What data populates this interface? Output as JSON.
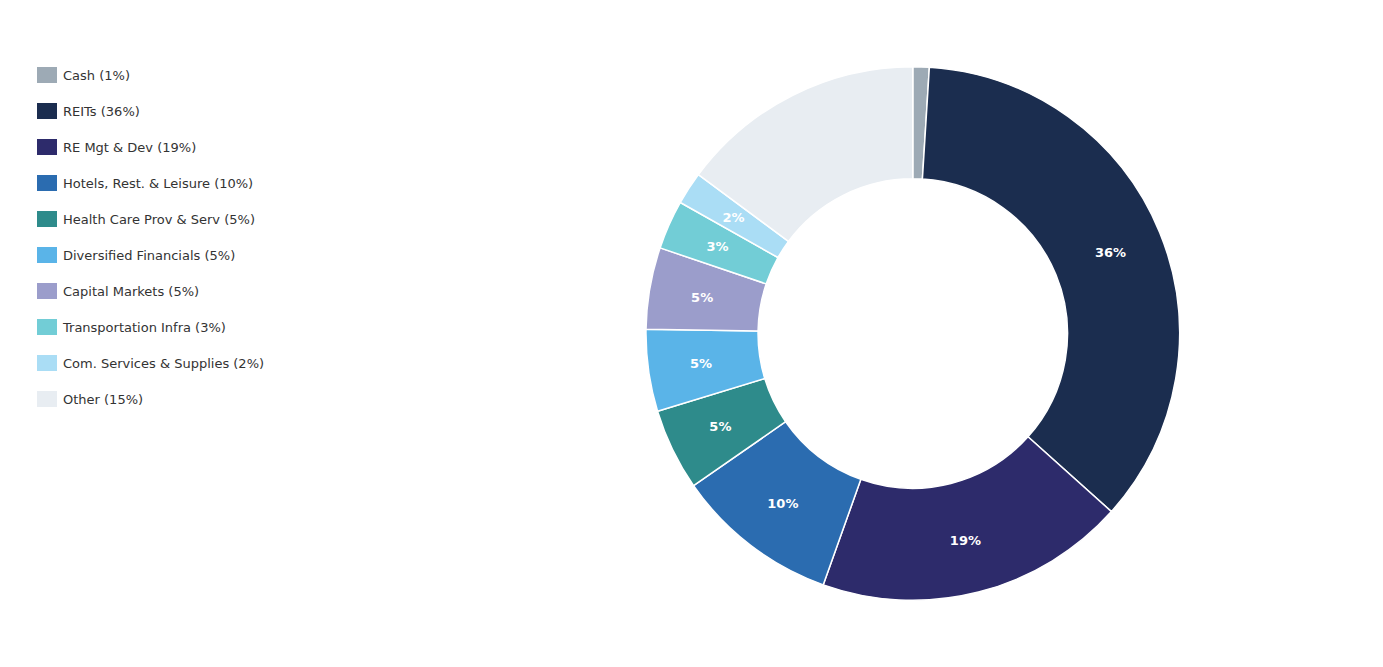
{
  "chart_data": {
    "type": "pie",
    "categories": [
      "Cash (1%)",
      "REITs (36%)",
      "RE Mgt & Dev (19%)",
      "Hotels, Rest. & Leisure (10%)",
      "Health Care Prov & Serv (5%)",
      "Diversified Financials (5%)",
      "Capital Markets (5%)",
      "Transportation Infra (3%)",
      "Com. Services & Supplies (2%)",
      "Other (15%)"
    ],
    "values": [
      1,
      36,
      19,
      10,
      5,
      5,
      5,
      3,
      2,
      15
    ],
    "value_labels": [
      null,
      "36%",
      "19%",
      "10%",
      "5%",
      "5%",
      "5%",
      "3%",
      "2%",
      null
    ],
    "colors": [
      "#9daab5",
      "#1b2d4f",
      "#2d2b6b",
      "#2b6cb0",
      "#2e8b8b",
      "#5ab4e8",
      "#9b9dcb",
      "#72cdd6",
      "#aaddf5",
      "#e8edf2"
    ],
    "data_labels": true,
    "legend": "upper left"
  }
}
